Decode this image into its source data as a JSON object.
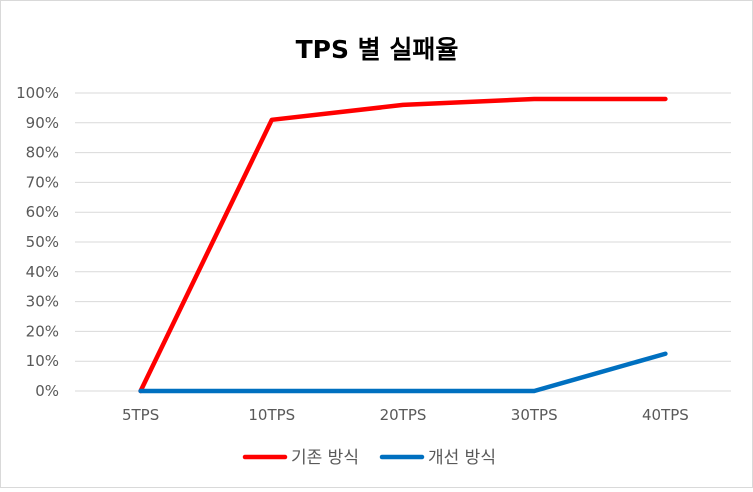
{
  "chart_data": {
    "type": "line",
    "title": "TPS 별 실패율",
    "categories": [
      "5TPS",
      "10TPS",
      "20TPS",
      "30TPS",
      "40TPS"
    ],
    "series": [
      {
        "name": "기존 방식",
        "color": "#ff0000",
        "values": [
          0,
          91,
          96,
          98,
          98
        ]
      },
      {
        "name": "개선 방식",
        "color": "#0070c0",
        "values": [
          0,
          0,
          0,
          0,
          12.5
        ]
      }
    ],
    "yticks": [
      "0%",
      "10%",
      "20%",
      "30%",
      "40%",
      "50%",
      "60%",
      "70%",
      "80%",
      "90%",
      "100%"
    ],
    "ylim": [
      0,
      100
    ],
    "xlabel": "",
    "ylabel": "",
    "grid": true,
    "legend_position": "bottom",
    "gridline_color": "#d9d9d9"
  }
}
